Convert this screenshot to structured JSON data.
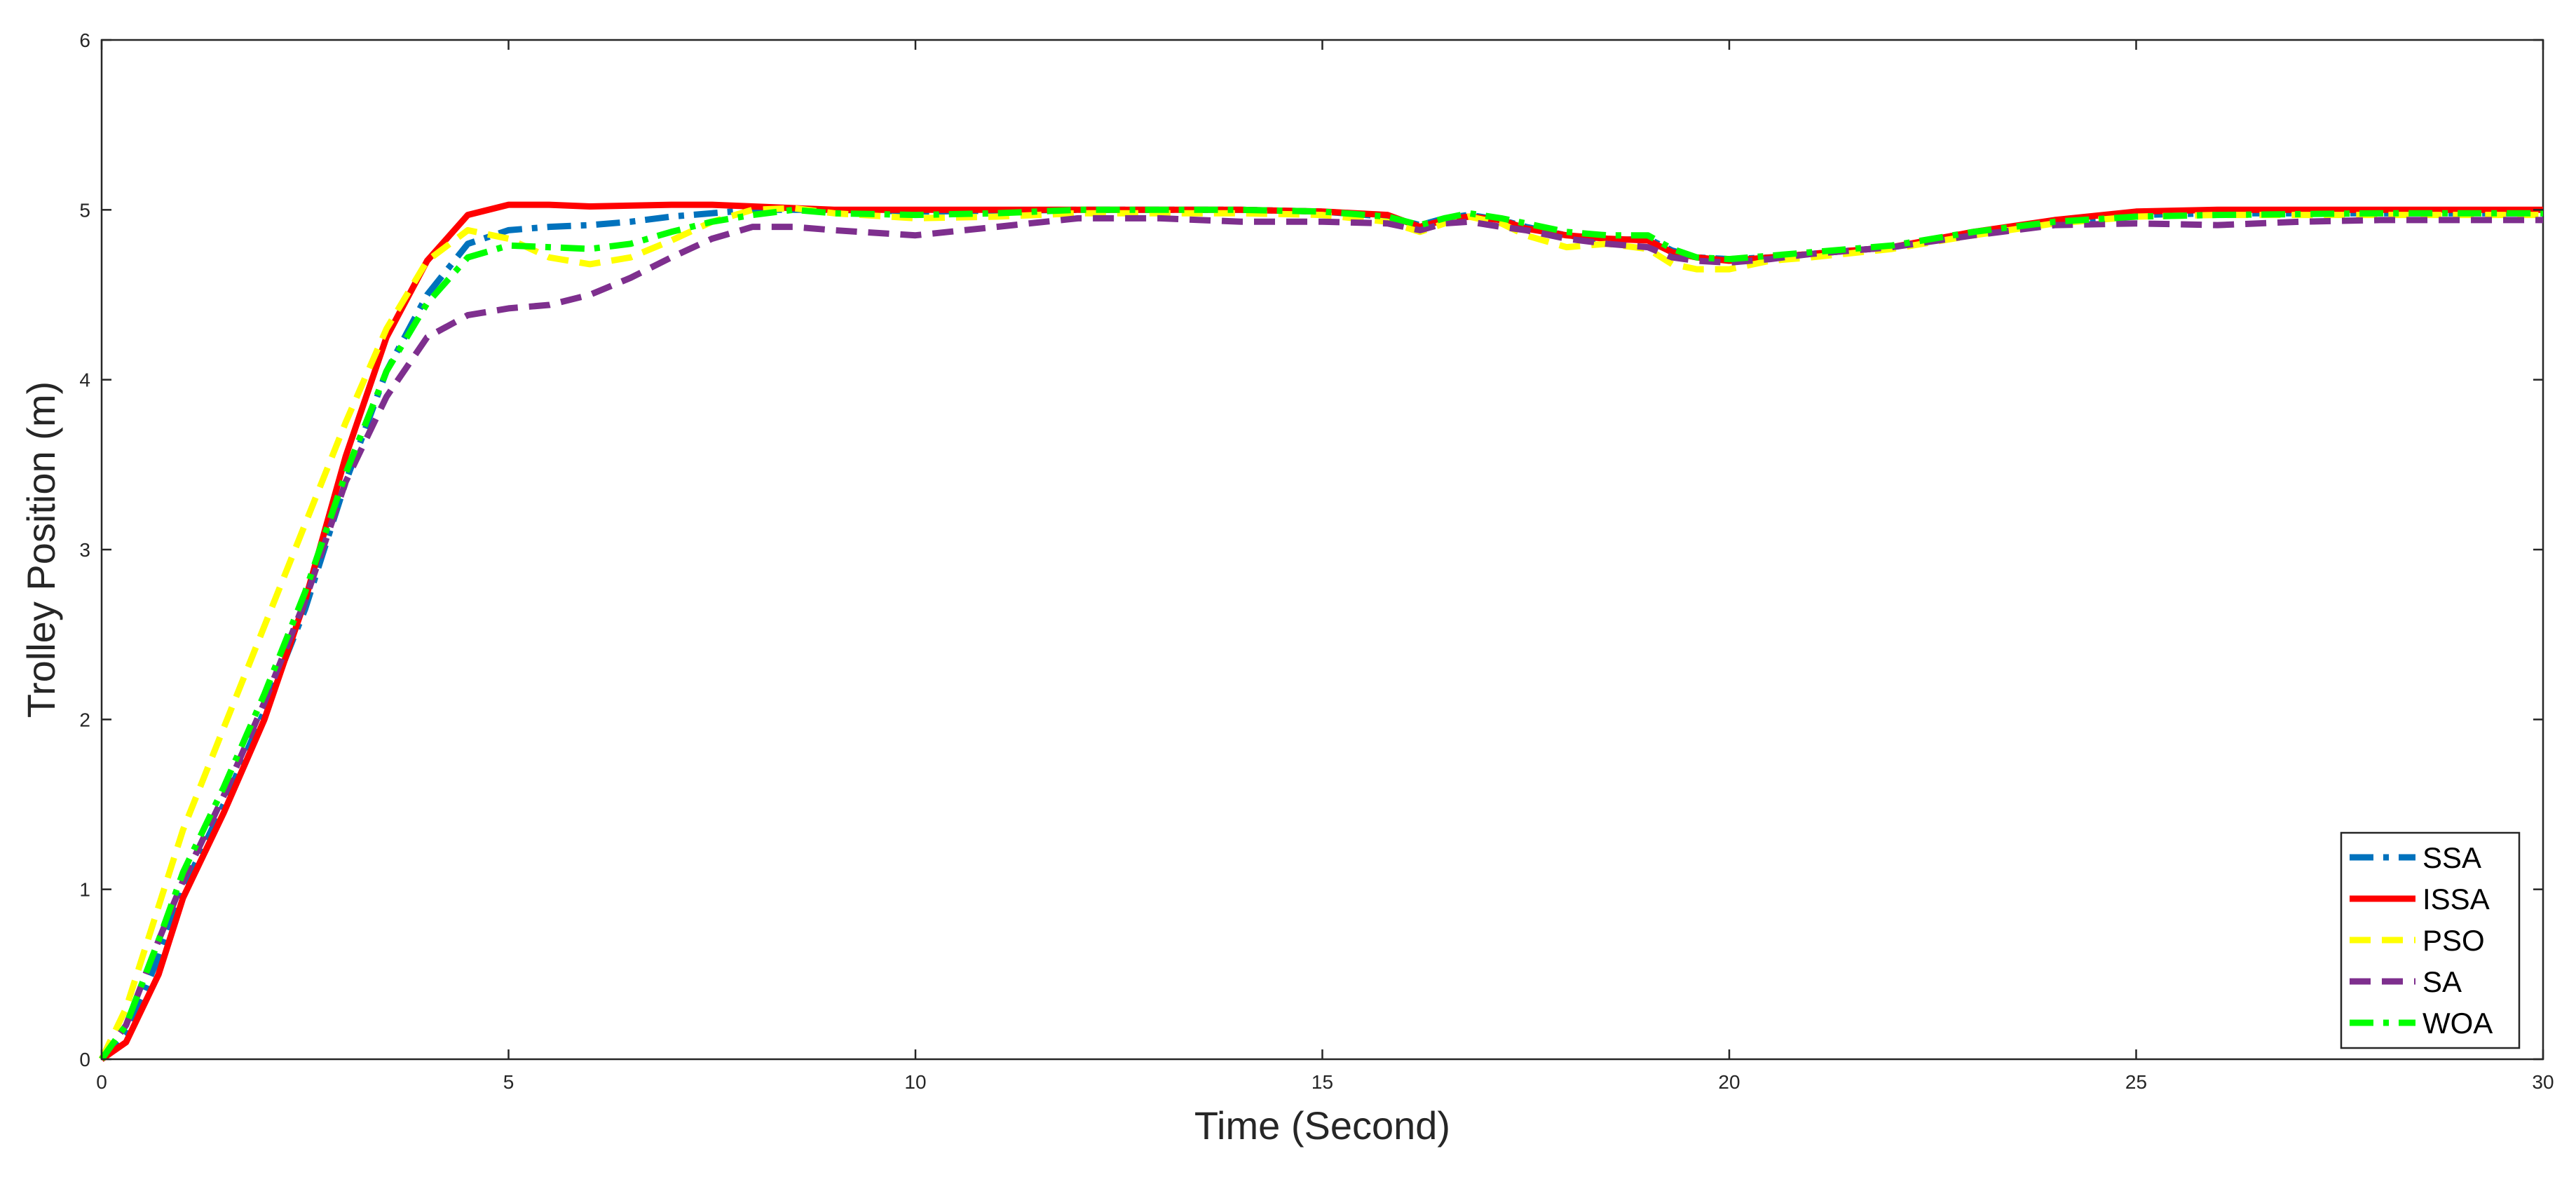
{
  "chart_data": {
    "type": "line",
    "title": "",
    "xlabel": "Time (Second)",
    "ylabel": "Trolley Position (m)",
    "xlim": [
      0,
      30
    ],
    "ylim": [
      0,
      6
    ],
    "xticks": [
      0,
      5,
      10,
      15,
      20,
      25,
      30
    ],
    "yticks": [
      0,
      1,
      2,
      3,
      4,
      5,
      6
    ],
    "grid": true,
    "legend_position": "bottom-right",
    "series": [
      {
        "name": "SSA",
        "color": "#0072BD",
        "dash": "dash-dot",
        "points": [
          [
            0,
            0
          ],
          [
            0.3,
            0.15
          ],
          [
            0.7,
            0.6
          ],
          [
            1,
            1.0
          ],
          [
            1.5,
            1.5
          ],
          [
            2,
            2.05
          ],
          [
            2.5,
            2.65
          ],
          [
            3,
            3.4
          ],
          [
            3.5,
            4.05
          ],
          [
            4,
            4.5
          ],
          [
            4.5,
            4.8
          ],
          [
            5,
            4.88
          ],
          [
            5.5,
            4.9
          ],
          [
            6,
            4.91
          ],
          [
            6.5,
            4.93
          ],
          [
            7,
            4.96
          ],
          [
            7.5,
            4.98
          ],
          [
            8,
            5.0
          ],
          [
            9,
            5.0
          ],
          [
            10,
            4.99
          ],
          [
            12,
            5.0
          ],
          [
            14,
            5.0
          ],
          [
            15,
            4.99
          ],
          [
            15.8,
            4.96
          ],
          [
            16.2,
            4.91
          ],
          [
            16.5,
            4.95
          ],
          [
            16.8,
            4.97
          ],
          [
            17.2,
            4.94
          ],
          [
            17.5,
            4.9
          ],
          [
            18,
            4.85
          ],
          [
            18.5,
            4.82
          ],
          [
            19,
            4.83
          ],
          [
            19.3,
            4.76
          ],
          [
            19.6,
            4.72
          ],
          [
            20,
            4.71
          ],
          [
            20.5,
            4.72
          ],
          [
            21,
            4.74
          ],
          [
            22,
            4.78
          ],
          [
            23,
            4.86
          ],
          [
            24,
            4.93
          ],
          [
            25,
            4.97
          ],
          [
            26,
            4.98
          ],
          [
            28,
            4.98
          ],
          [
            30,
            4.98
          ]
        ]
      },
      {
        "name": "ISSA",
        "color": "#FF0000",
        "dash": "solid",
        "points": [
          [
            0,
            0
          ],
          [
            0.3,
            0.1
          ],
          [
            0.7,
            0.5
          ],
          [
            1,
            0.95
          ],
          [
            1.5,
            1.45
          ],
          [
            2,
            2.0
          ],
          [
            2.5,
            2.7
          ],
          [
            3,
            3.55
          ],
          [
            3.5,
            4.25
          ],
          [
            4,
            4.7
          ],
          [
            4.5,
            4.97
          ],
          [
            5,
            5.03
          ],
          [
            5.5,
            5.03
          ],
          [
            6,
            5.02
          ],
          [
            7,
            5.03
          ],
          [
            7.5,
            5.03
          ],
          [
            8,
            5.02
          ],
          [
            9,
            5.0
          ],
          [
            10,
            5.0
          ],
          [
            12,
            5.0
          ],
          [
            14,
            5.0
          ],
          [
            15,
            4.99
          ],
          [
            15.8,
            4.97
          ],
          [
            16.2,
            4.9
          ],
          [
            16.5,
            4.94
          ],
          [
            16.8,
            4.96
          ],
          [
            17.2,
            4.94
          ],
          [
            17.5,
            4.89
          ],
          [
            18,
            4.85
          ],
          [
            18.5,
            4.83
          ],
          [
            19,
            4.82
          ],
          [
            19.3,
            4.75
          ],
          [
            19.6,
            4.72
          ],
          [
            20,
            4.7
          ],
          [
            20.5,
            4.72
          ],
          [
            21,
            4.74
          ],
          [
            22,
            4.78
          ],
          [
            23,
            4.87
          ],
          [
            24,
            4.94
          ],
          [
            25,
            4.99
          ],
          [
            26,
            5.0
          ],
          [
            28,
            5.0
          ],
          [
            30,
            5.0
          ]
        ]
      },
      {
        "name": "PSO",
        "color": "#FFFF00",
        "dash": "dash",
        "points": [
          [
            0,
            0
          ],
          [
            0.3,
            0.3
          ],
          [
            0.7,
            0.9
          ],
          [
            1,
            1.35
          ],
          [
            1.5,
            1.95
          ],
          [
            2,
            2.55
          ],
          [
            2.5,
            3.15
          ],
          [
            3,
            3.75
          ],
          [
            3.5,
            4.3
          ],
          [
            4,
            4.7
          ],
          [
            4.5,
            4.88
          ],
          [
            5,
            4.83
          ],
          [
            5.5,
            4.72
          ],
          [
            6,
            4.68
          ],
          [
            6.5,
            4.72
          ],
          [
            7,
            4.82
          ],
          [
            7.5,
            4.93
          ],
          [
            8,
            5.0
          ],
          [
            8.5,
            5.01
          ],
          [
            9,
            4.98
          ],
          [
            10,
            4.95
          ],
          [
            11,
            4.96
          ],
          [
            12,
            4.98
          ],
          [
            14,
            4.98
          ],
          [
            15,
            4.97
          ],
          [
            15.8,
            4.93
          ],
          [
            16.2,
            4.87
          ],
          [
            16.5,
            4.92
          ],
          [
            16.8,
            4.96
          ],
          [
            17.2,
            4.92
          ],
          [
            17.5,
            4.85
          ],
          [
            18,
            4.78
          ],
          [
            18.5,
            4.8
          ],
          [
            19,
            4.77
          ],
          [
            19.3,
            4.68
          ],
          [
            19.6,
            4.65
          ],
          [
            20,
            4.65
          ],
          [
            20.5,
            4.7
          ],
          [
            21,
            4.72
          ],
          [
            22,
            4.77
          ],
          [
            23,
            4.85
          ],
          [
            24,
            4.92
          ],
          [
            25,
            4.96
          ],
          [
            26,
            4.97
          ],
          [
            28,
            4.97
          ],
          [
            30,
            4.97
          ]
        ]
      },
      {
        "name": "SA",
        "color": "#7E2F8E",
        "dash": "dash",
        "points": [
          [
            0,
            0
          ],
          [
            0.3,
            0.2
          ],
          [
            0.7,
            0.7
          ],
          [
            1,
            1.05
          ],
          [
            1.5,
            1.55
          ],
          [
            2,
            2.1
          ],
          [
            2.5,
            2.7
          ],
          [
            3,
            3.4
          ],
          [
            3.5,
            3.9
          ],
          [
            4,
            4.25
          ],
          [
            4.5,
            4.38
          ],
          [
            5,
            4.42
          ],
          [
            5.5,
            4.44
          ],
          [
            6,
            4.5
          ],
          [
            6.5,
            4.6
          ],
          [
            7,
            4.72
          ],
          [
            7.5,
            4.83
          ],
          [
            8,
            4.9
          ],
          [
            8.5,
            4.9
          ],
          [
            9,
            4.88
          ],
          [
            10,
            4.85
          ],
          [
            11,
            4.9
          ],
          [
            12,
            4.95
          ],
          [
            13,
            4.95
          ],
          [
            14,
            4.93
          ],
          [
            15,
            4.93
          ],
          [
            15.8,
            4.92
          ],
          [
            16.2,
            4.88
          ],
          [
            16.5,
            4.92
          ],
          [
            16.8,
            4.93
          ],
          [
            17.2,
            4.9
          ],
          [
            17.5,
            4.88
          ],
          [
            18,
            4.83
          ],
          [
            18.5,
            4.8
          ],
          [
            19,
            4.78
          ],
          [
            19.3,
            4.72
          ],
          [
            19.6,
            4.7
          ],
          [
            20,
            4.69
          ],
          [
            20.5,
            4.71
          ],
          [
            21,
            4.74
          ],
          [
            22,
            4.78
          ],
          [
            23,
            4.85
          ],
          [
            24,
            4.91
          ],
          [
            25,
            4.92
          ],
          [
            26,
            4.91
          ],
          [
            27,
            4.93
          ],
          [
            28,
            4.94
          ],
          [
            30,
            4.94
          ]
        ]
      },
      {
        "name": "WOA",
        "color": "#00FF00",
        "dash": "dash-dot",
        "points": [
          [
            0,
            0
          ],
          [
            0.3,
            0.2
          ],
          [
            0.7,
            0.7
          ],
          [
            1,
            1.1
          ],
          [
            1.5,
            1.6
          ],
          [
            2,
            2.15
          ],
          [
            2.5,
            2.75
          ],
          [
            3,
            3.45
          ],
          [
            3.5,
            4.05
          ],
          [
            4,
            4.45
          ],
          [
            4.5,
            4.72
          ],
          [
            5,
            4.79
          ],
          [
            5.5,
            4.78
          ],
          [
            6,
            4.77
          ],
          [
            6.5,
            4.8
          ],
          [
            7,
            4.87
          ],
          [
            7.5,
            4.93
          ],
          [
            8,
            4.97
          ],
          [
            8.5,
            5.0
          ],
          [
            9,
            4.98
          ],
          [
            10,
            4.97
          ],
          [
            11,
            4.98
          ],
          [
            12,
            5.0
          ],
          [
            14,
            5.0
          ],
          [
            15,
            4.99
          ],
          [
            15.8,
            4.96
          ],
          [
            16.2,
            4.91
          ],
          [
            16.5,
            4.95
          ],
          [
            16.8,
            4.98
          ],
          [
            17.2,
            4.95
          ],
          [
            17.5,
            4.92
          ],
          [
            18,
            4.87
          ],
          [
            18.5,
            4.85
          ],
          [
            19,
            4.85
          ],
          [
            19.3,
            4.77
          ],
          [
            19.6,
            4.72
          ],
          [
            20,
            4.71
          ],
          [
            20.5,
            4.73
          ],
          [
            21,
            4.75
          ],
          [
            22,
            4.79
          ],
          [
            23,
            4.87
          ],
          [
            24,
            4.93
          ],
          [
            25,
            4.96
          ],
          [
            26,
            4.97
          ],
          [
            28,
            4.98
          ],
          [
            30,
            4.98
          ]
        ]
      }
    ]
  }
}
